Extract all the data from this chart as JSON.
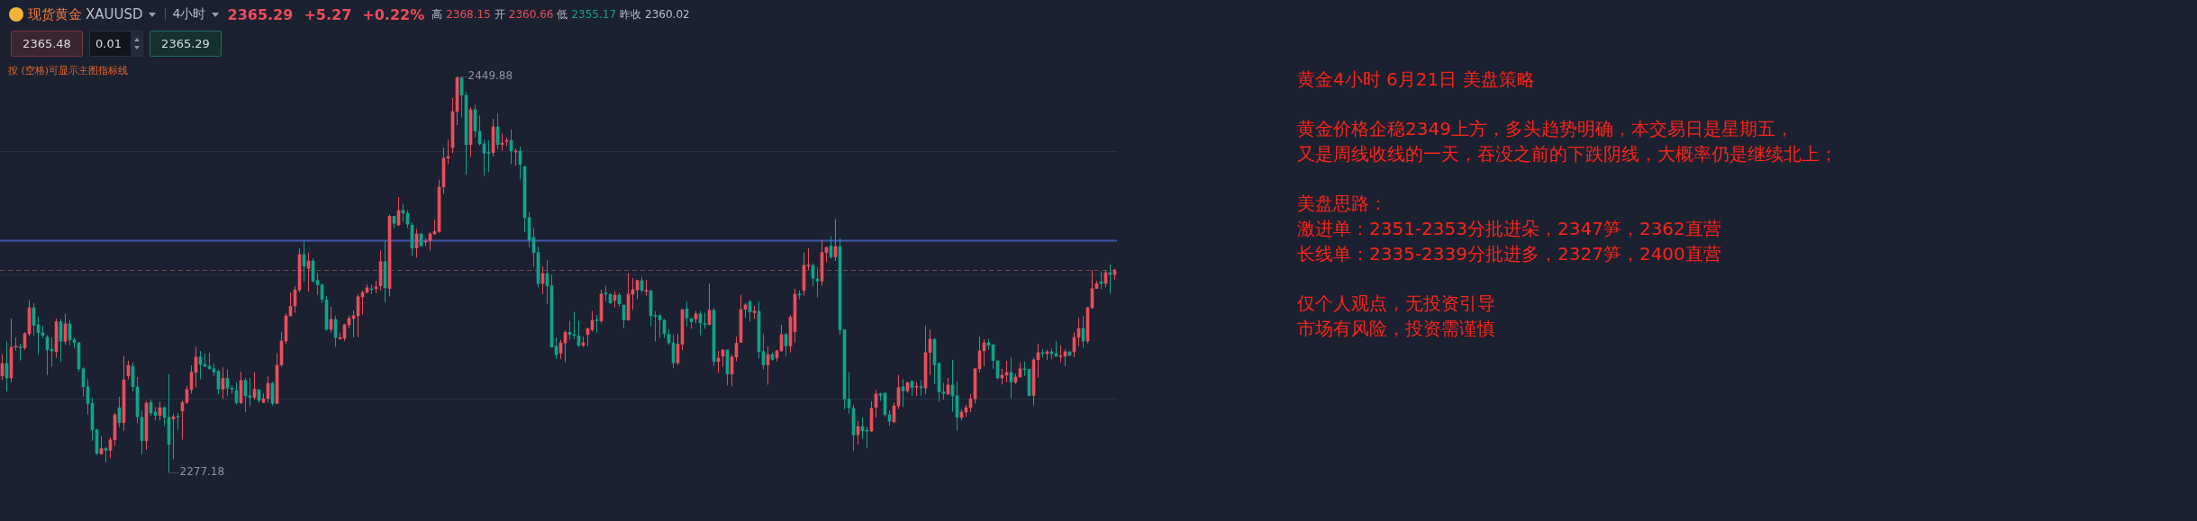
{
  "chart_data": {
    "type": "candlestick",
    "title": "黄金4小时 6月21日 美盘策略",
    "categories": [
      null,
      null,
      null,
      null,
      null,
      null,
      null,
      null,
      null,
      null,
      null,
      null,
      null,
      null,
      null,
      null,
      null,
      null,
      null,
      null,
      null,
      null,
      null,
      null,
      null,
      null,
      null,
      null,
      null,
      null,
      null,
      null,
      null,
      null,
      null,
      null,
      null,
      null,
      null,
      null,
      null,
      null,
      null,
      null,
      null,
      null,
      null,
      null,
      null,
      null,
      null,
      null,
      null,
      null,
      null,
      null,
      null,
      null,
      null,
      null,
      null,
      null,
      null,
      null,
      null,
      null,
      null,
      null,
      null,
      null,
      null,
      null,
      null,
      null,
      null,
      null,
      null,
      null,
      null,
      null,
      null,
      null,
      null,
      null,
      null,
      null,
      null,
      null,
      null,
      null,
      null,
      null,
      null,
      null,
      null,
      null,
      null,
      null,
      null,
      null,
      null,
      null,
      null,
      null,
      null,
      null,
      null,
      null,
      null,
      null,
      null,
      null,
      null,
      null,
      null,
      null,
      null,
      null,
      null,
      null,
      null,
      null,
      null,
      null,
      null,
      null,
      null,
      null,
      null,
      null,
      null,
      null,
      null,
      null,
      null,
      null,
      null,
      null,
      null,
      null,
      null,
      null,
      null,
      null,
      null,
      null,
      null,
      null,
      null,
      null,
      null,
      null,
      null,
      null,
      null,
      null,
      null,
      null,
      null,
      null,
      null,
      null,
      null,
      null,
      null,
      null,
      null,
      null,
      null,
      null,
      null,
      null,
      null,
      null,
      null,
      null,
      null,
      null,
      null,
      null,
      null,
      null,
      null,
      null,
      null,
      null,
      null,
      null,
      null,
      null,
      null,
      null,
      null,
      null,
      null,
      null,
      null,
      null,
      null,
      null,
      null,
      null,
      null,
      null,
      null,
      null,
      null,
      null,
      null,
      null,
      null,
      null,
      null,
      null,
      null,
      null,
      null,
      null,
      null,
      null,
      null,
      null,
      null,
      null,
      null,
      null,
      null,
      null,
      null,
      null,
      null,
      null,
      null,
      null,
      null,
      null,
      null,
      null,
      null,
      null,
      null,
      null,
      null,
      null,
      null,
      null,
      null,
      null
    ],
    "ohlc": [
      [
        2319.3,
        2328.6,
        2317.4,
        2324.7
      ],
      [
        2324.7,
        2334.4,
        2312.5,
        2318.4
      ],
      [
        2318.4,
        2344.3,
        2316.5,
        2331.8
      ],
      [
        2331.8,
        2336.1,
        2330.2,
        2332.2
      ],
      [
        2331.9,
        2333.3,
        2326.0,
        2331.5
      ],
      [
        2331.5,
        2338.3,
        2330.6,
        2337.8
      ],
      [
        2337.7,
        2352.2,
        2336.6,
        2349.0
      ],
      [
        2349.0,
        2351.1,
        2336.6,
        2341.3
      ],
      [
        2341.6,
        2345.1,
        2328.5,
        2338.1
      ],
      [
        2338.1,
        2341.1,
        2335.8,
        2337.0
      ],
      [
        2336.2,
        2337.0,
        2319.7,
        2330.7
      ],
      [
        2330.9,
        2336.1,
        2323.3,
        2330.2
      ],
      [
        2329.8,
        2344.3,
        2327.2,
        2342.9
      ],
      [
        2342.9,
        2344.1,
        2325.4,
        2334.4
      ],
      [
        2334.3,
        2346.3,
        2332.8,
        2342.0
      ],
      [
        2342.0,
        2343.7,
        2332.8,
        2335.0
      ],
      [
        2335.0,
        2336.1,
        2331.5,
        2333.9
      ],
      [
        2333.7,
        2334.1,
        2321.3,
        2322.4
      ],
      [
        2322.4,
        2323.0,
        2310.2,
        2314.5
      ],
      [
        2314.5,
        2317.8,
        2302.5,
        2307.2
      ],
      [
        2307.2,
        2309.8,
        2291.0,
        2295.8
      ],
      [
        2295.8,
        2296.2,
        2284.7,
        2285.5
      ],
      [
        2285.2,
        2292.9,
        2285.2,
        2287.6
      ],
      [
        2287.6,
        2288.4,
        2281.4,
        2286.8
      ],
      [
        2286.8,
        2292.5,
        2283.4,
        2291.4
      ],
      [
        2291.4,
        2303.1,
        2288.7,
        2302.3
      ],
      [
        2305.4,
        2310.2,
        2296.9,
        2298.9
      ],
      [
        2298.9,
        2327.9,
        2295.4,
        2317.5
      ],
      [
        2319.3,
        2325.9,
        2317.8,
        2323.9
      ],
      [
        2323.5,
        2325.2,
        2312.5,
        2314.6
      ],
      [
        2314.5,
        2318.8,
        2298.6,
        2301.4
      ],
      [
        2301.2,
        2304.0,
        2285.1,
        2291.0
      ],
      [
        2291.0,
        2308.4,
        2287.0,
        2307.4
      ],
      [
        2307.7,
        2309.0,
        2301.8,
        2303.1
      ],
      [
        2303.5,
        2305.6,
        2299.9,
        2302.1
      ],
      [
        2302.1,
        2308.0,
        2299.9,
        2305.4
      ],
      [
        2305.4,
        2306.0,
        2297.4,
        2301.2
      ],
      [
        2301.2,
        2320.0,
        2277.18,
        2289.4
      ],
      [
        2300.5,
        2302.7,
        2282.9,
        2301.4
      ],
      [
        2301.6,
        2303.1,
        2295.8,
        2301.3
      ],
      [
        2304.0,
        2308.6,
        2291.5,
        2307.7
      ],
      [
        2307.7,
        2314.9,
        2307.0,
        2313.3
      ],
      [
        2313.3,
        2323.9,
        2311.5,
        2320.8
      ],
      [
        2320.8,
        2331.8,
        2314.2,
        2327.5
      ],
      [
        2327.5,
        2330.2,
        2317.8,
        2324.3
      ],
      [
        2324.3,
        2328.9,
        2323.1,
        2323.5
      ],
      [
        2323.5,
        2329.4,
        2322.0,
        2322.4
      ],
      [
        2322.4,
        2324.7,
        2319.2,
        2321.0
      ],
      [
        2321.3,
        2322.0,
        2311.4,
        2313.6
      ],
      [
        2313.6,
        2323.0,
        2309.3,
        2318.2
      ],
      [
        2318.2,
        2322.1,
        2310.6,
        2313.9
      ],
      [
        2313.9,
        2315.2,
        2311.5,
        2313.5
      ],
      [
        2312.9,
        2316.5,
        2306.7,
        2307.6
      ],
      [
        2307.6,
        2321.0,
        2307.0,
        2317.3
      ],
      [
        2317.3,
        2318.4,
        2303.4,
        2310.6
      ],
      [
        2310.6,
        2318.4,
        2306.4,
        2309.9
      ],
      [
        2309.9,
        2320.8,
        2308.9,
        2313.5
      ],
      [
        2313.3,
        2313.3,
        2307.6,
        2308.6
      ],
      [
        2307.7,
        2311.6,
        2307.4,
        2309.3
      ],
      [
        2309.5,
        2319.1,
        2307.7,
        2316.1
      ],
      [
        2316.1,
        2316.7,
        2306.4,
        2307.3
      ],
      [
        2307.3,
        2329.2,
        2307.0,
        2323.9
      ],
      [
        2324.1,
        2338.4,
        2323.3,
        2334.5
      ],
      [
        2334.5,
        2346.6,
        2333.3,
        2345.5
      ],
      [
        2345.5,
        2355.7,
        2345.1,
        2349.6
      ],
      [
        2349.8,
        2358.5,
        2346.8,
        2356.8
      ],
      [
        2356.8,
        2374.9,
        2355.7,
        2372.2
      ],
      [
        2372.2,
        2378.2,
        2360.2,
        2367.2
      ],
      [
        2366.2,
        2373.1,
        2356.1,
        2369.4
      ],
      [
        2369.4,
        2370.6,
        2359.9,
        2360.6
      ],
      [
        2360.9,
        2364.2,
        2354.7,
        2359.0
      ],
      [
        2359.0,
        2359.6,
        2351.1,
        2352.7
      ],
      [
        2352.4,
        2354.1,
        2339.0,
        2339.6
      ],
      [
        2339.6,
        2349.4,
        2338.1,
        2343.9
      ],
      [
        2343.9,
        2345.5,
        2331.9,
        2336.0
      ],
      [
        2335.4,
        2338.1,
        2335.2,
        2336.0
      ],
      [
        2335.7,
        2342.0,
        2334.5,
        2341.6
      ],
      [
        2341.6,
        2345.6,
        2340.0,
        2344.3
      ],
      [
        2344.3,
        2347.9,
        2336.1,
        2345.5
      ],
      [
        2345.5,
        2355.0,
        2336.2,
        2353.8
      ],
      [
        2353.8,
        2356.6,
        2346.2,
        2355.7
      ],
      [
        2355.7,
        2359.2,
        2355.3,
        2357.7
      ],
      [
        2357.3,
        2359.0,
        2355.0,
        2356.9
      ],
      [
        2357.4,
        2360.7,
        2355.5,
        2358.1
      ],
      [
        2358.6,
        2374.0,
        2356.6,
        2369.1
      ],
      [
        2369.1,
        2378.3,
        2351.5,
        2357.7
      ],
      [
        2357.4,
        2389.7,
        2354.0,
        2388.9
      ],
      [
        2388.9,
        2389.1,
        2383.6,
        2385.8
      ],
      [
        2385.1,
        2397.3,
        2384.7,
        2391.4
      ],
      [
        2391.4,
        2394.3,
        2386.5,
        2390.4
      ],
      [
        2390.2,
        2391.5,
        2383.8,
        2385.4
      ],
      [
        2385.0,
        2386.3,
        2371.7,
        2375.1
      ],
      [
        2375.1,
        2383.4,
        2370.8,
        2381.2
      ],
      [
        2381.2,
        2381.6,
        2375.7,
        2376.0
      ],
      [
        2377.6,
        2379.3,
        2376.0,
        2378.1
      ],
      [
        2378.3,
        2382.0,
        2373.9,
        2381.2
      ],
      [
        2381.2,
        2387.5,
        2380.8,
        2382.3
      ],
      [
        2382.3,
        2404.8,
        2381.7,
        2401.6
      ],
      [
        2401.7,
        2418.9,
        2398.6,
        2414.2
      ],
      [
        2414.3,
        2422.4,
        2411.6,
        2415.0
      ],
      [
        2418.9,
        2440.5,
        2416.5,
        2434.6
      ],
      [
        2434.6,
        2449.88,
        2428.7,
        2449.3
      ],
      [
        2449.2,
        2449.6,
        2432.0,
        2441.8
      ],
      [
        2441.6,
        2443.0,
        2407.1,
        2420.2
      ],
      [
        2420.2,
        2436.4,
        2414.8,
        2435.4
      ],
      [
        2435.4,
        2437.5,
        2423.3,
        2426.1
      ],
      [
        2426.0,
        2432.9,
        2419.7,
        2420.5
      ],
      [
        2420.5,
        2422.4,
        2406.5,
        2416.5
      ],
      [
        2416.7,
        2422.0,
        2408.3,
        2416.3
      ],
      [
        2416.7,
        2431.4,
        2415.1,
        2427.9
      ],
      [
        2427.9,
        2433.8,
        2418.1,
        2420.2
      ],
      [
        2420.2,
        2425.0,
        2417.4,
        2420.8
      ],
      [
        2421.6,
        2423.3,
        2419.5,
        2422.0
      ],
      [
        2422.0,
        2426.7,
        2411.6,
        2417.4
      ],
      [
        2416.9,
        2418.6,
        2410.9,
        2417.3
      ],
      [
        2417.4,
        2419.3,
        2405.0,
        2411.6
      ],
      [
        2410.6,
        2411.0,
        2382.1,
        2388.3
      ],
      [
        2388.3,
        2390.6,
        2375.3,
        2378.6
      ],
      [
        2379.6,
        2383.6,
        2366.8,
        2373.1
      ],
      [
        2373.1,
        2375.7,
        2358.0,
        2359.6
      ],
      [
        2359.6,
        2367.1,
        2355.0,
        2363.9
      ],
      [
        2363.9,
        2369.8,
        2350.7,
        2358.6
      ],
      [
        2358.6,
        2363.5,
        2331.8,
        2331.9
      ],
      [
        2332.2,
        2336.1,
        2326.7,
        2328.5
      ],
      [
        2329.2,
        2335.0,
        2326.7,
        2333.7
      ],
      [
        2333.7,
        2339.2,
        2325.2,
        2338.3
      ],
      [
        2338.3,
        2343.3,
        2335.0,
        2337.4
      ],
      [
        2337.3,
        2347.2,
        2335.4,
        2337.0
      ],
      [
        2336.7,
        2343.3,
        2331.9,
        2332.6
      ],
      [
        2332.6,
        2336.5,
        2331.9,
        2333.7
      ],
      [
        2337.4,
        2340.4,
        2332.2,
        2339.8
      ],
      [
        2339.4,
        2347.6,
        2338.6,
        2343.5
      ],
      [
        2343.5,
        2345.9,
        2338.1,
        2343.3
      ],
      [
        2343.3,
        2356.9,
        2342.5,
        2355.0
      ],
      [
        2355.3,
        2358.6,
        2351.8,
        2355.0
      ],
      [
        2354.9,
        2355.0,
        2350.7,
        2351.1
      ],
      [
        2352.2,
        2356.2,
        2349.2,
        2354.5
      ],
      [
        2354.5,
        2355.6,
        2349.4,
        2350.7
      ],
      [
        2350.2,
        2350.2,
        2340.0,
        2343.7
      ],
      [
        2343.7,
        2364.1,
        2343.3,
        2354.9
      ],
      [
        2354.9,
        2362.0,
        2348.1,
        2356.9
      ],
      [
        2356.8,
        2361.2,
        2352.7,
        2360.9
      ],
      [
        2360.8,
        2362.5,
        2355.5,
        2356.6
      ],
      [
        2356.2,
        2361.2,
        2354.3,
        2356.5
      ],
      [
        2356.5,
        2356.5,
        2340.9,
        2345.6
      ],
      [
        2345.5,
        2347.5,
        2334.4,
        2345.2
      ],
      [
        2345.5,
        2346.3,
        2335.8,
        2343.7
      ],
      [
        2343.5,
        2344.1,
        2335.8,
        2337.8
      ],
      [
        2337.4,
        2339.6,
        2332.8,
        2333.7
      ],
      [
        2333.7,
        2337.4,
        2322.6,
        2325.0
      ],
      [
        2325.0,
        2337.7,
        2324.1,
        2333.1
      ],
      [
        2333.1,
        2348.2,
        2330.5,
        2348.2
      ],
      [
        2348.5,
        2351.8,
        2340.9,
        2344.6
      ],
      [
        2344.3,
        2344.3,
        2339.8,
        2342.9
      ],
      [
        2344.1,
        2347.6,
        2342.2,
        2346.3
      ],
      [
        2346.3,
        2347.6,
        2337.0,
        2342.4
      ],
      [
        2342.0,
        2346.8,
        2339.8,
        2341.7
      ],
      [
        2341.7,
        2359.6,
        2341.3,
        2347.9
      ],
      [
        2347.9,
        2348.8,
        2323.6,
        2325.6
      ],
      [
        2325.6,
        2330.2,
        2320.6,
        2327.0
      ],
      [
        2327.9,
        2330.8,
        2323.3,
        2330.6
      ],
      [
        2330.6,
        2330.6,
        2315.1,
        2320.1
      ],
      [
        2320.1,
        2328.6,
        2314.7,
        2327.5
      ],
      [
        2327.5,
        2336.5,
        2325.6,
        2333.5
      ],
      [
        2333.9,
        2354.7,
        2333.7,
        2348.2
      ],
      [
        2348.4,
        2351.1,
        2344.6,
        2350.2
      ],
      [
        2351.6,
        2352.4,
        2342.9,
        2347.2
      ],
      [
        2346.9,
        2349.8,
        2344.1,
        2347.5
      ],
      [
        2347.5,
        2351.8,
        2326.9,
        2329.9
      ],
      [
        2329.9,
        2337.7,
        2322.1,
        2324.1
      ],
      [
        2324.1,
        2332.2,
        2315.4,
        2328.6
      ],
      [
        2328.6,
        2329.4,
        2326.0,
        2326.5
      ],
      [
        2327.2,
        2330.6,
        2325.6,
        2330.2
      ],
      [
        2330.2,
        2341.6,
        2329.8,
        2337.3
      ],
      [
        2337.3,
        2338.1,
        2327.9,
        2332.4
      ],
      [
        2332.4,
        2345.9,
        2329.5,
        2344.9
      ],
      [
        2338.6,
        2357.3,
        2333.9,
        2354.9
      ],
      [
        2355.0,
        2356.6,
        2352.7,
        2354.6
      ],
      [
        2356.6,
        2373.1,
        2354.3,
        2367.5
      ],
      [
        2367.2,
        2374.9,
        2365.3,
        2367.5
      ],
      [
        2367.5,
        2368.4,
        2358.6,
        2361.9
      ],
      [
        2361.6,
        2366.7,
        2353.5,
        2360.6
      ],
      [
        2360.6,
        2378.5,
        2358.6,
        2373.1
      ],
      [
        2373.1,
        2375.6,
        2368.8,
        2375.3
      ],
      [
        2376.0,
        2380.2,
        2370.4,
        2371.2
      ],
      [
        2371.2,
        2387.6,
        2369.4,
        2375.7
      ],
      [
        2375.7,
        2379.3,
        2337.3,
        2339.4
      ],
      [
        2339.4,
        2339.4,
        2304.7,
        2309.2
      ],
      [
        2309.2,
        2320.9,
        2302.9,
        2305.4
      ],
      [
        2305.1,
        2306.7,
        2286.4,
        2293.6
      ],
      [
        2293.6,
        2299.7,
        2289.3,
        2297.2
      ],
      [
        2297.2,
        2301.2,
        2291.9,
        2295.4
      ],
      [
        2295.4,
        2297.2,
        2287.7,
        2295.2
      ],
      [
        2295.2,
        2308.2,
        2294.9,
        2305.1
      ],
      [
        2305.6,
        2313.2,
        2301.0,
        2311.4
      ],
      [
        2311.4,
        2311.9,
        2308.4,
        2310.8
      ],
      [
        2311.8,
        2311.8,
        2301.4,
        2302.5
      ],
      [
        2302.3,
        2304.3,
        2297.5,
        2299.5
      ],
      [
        2299.2,
        2307.6,
        2298.6,
        2306.2
      ],
      [
        2306.2,
        2319.7,
        2304.8,
        2314.2
      ],
      [
        2314.5,
        2317.8,
        2305.7,
        2312.8
      ],
      [
        2312.8,
        2316.7,
        2311.9,
        2316.3
      ],
      [
        2316.8,
        2317.4,
        2310.6,
        2314.2
      ],
      [
        2314.4,
        2316.6,
        2310.6,
        2314.6
      ],
      [
        2314.6,
        2317.4,
        2310.7,
        2314.1
      ],
      [
        2314.0,
        2341.3,
        2311.5,
        2329.4
      ],
      [
        2329.5,
        2339.4,
        2319.7,
        2335.3
      ],
      [
        2335.3,
        2335.4,
        2315.8,
        2324.1
      ],
      [
        2324.7,
        2325.2,
        2308.0,
        2312.3
      ],
      [
        2312.3,
        2316.2,
        2308.9,
        2311.6
      ],
      [
        2311.4,
        2318.4,
        2310.9,
        2315.3
      ],
      [
        2315.3,
        2326.3,
        2303.7,
        2310.6
      ],
      [
        2310.6,
        2316.8,
        2295.5,
        2301.2
      ],
      [
        2301.2,
        2304.7,
        2299.9,
        2303.5
      ],
      [
        2303.5,
        2306.7,
        2301.4,
        2305.4
      ],
      [
        2305.4,
        2311.5,
        2303.5,
        2309.3
      ],
      [
        2309.3,
        2322.4,
        2307.3,
        2322.4
      ],
      [
        2322.4,
        2336.5,
        2320.8,
        2330.2
      ],
      [
        2330.2,
        2335.3,
        2323.6,
        2333.7
      ],
      [
        2333.7,
        2335.4,
        2330.6,
        2332.6
      ],
      [
        2332.9,
        2332.9,
        2322.4,
        2326.0
      ],
      [
        2325.9,
        2325.9,
        2317.8,
        2318.4
      ],
      [
        2318.4,
        2322.4,
        2315.5,
        2319.6
      ],
      [
        2319.6,
        2325.9,
        2316.5,
        2320.8
      ],
      [
        2320.8,
        2327.6,
        2309.5,
        2316.6
      ],
      [
        2316.5,
        2320.2,
        2315.8,
        2318.8
      ],
      [
        2318.8,
        2325.0,
        2318.7,
        2322.4
      ],
      [
        2322.4,
        2325.6,
        2319.3,
        2322.0
      ],
      [
        2322.1,
        2322.4,
        2310.6,
        2310.6
      ],
      [
        2310.8,
        2327.3,
        2306.4,
        2326.3
      ],
      [
        2326.3,
        2333.1,
        2318.4,
        2329.4
      ],
      [
        2329.4,
        2330.8,
        2327.2,
        2329.0
      ],
      [
        2329.0,
        2330.6,
        2326.3,
        2329.8
      ],
      [
        2329.8,
        2331.2,
        2326.7,
        2329.0
      ],
      [
        2329.0,
        2334.5,
        2327.6,
        2327.9
      ],
      [
        2327.6,
        2332.6,
        2325.2,
        2327.9
      ],
      [
        2327.9,
        2330.8,
        2323.6,
        2329.8
      ],
      [
        2329.8,
        2329.8,
        2327.9,
        2328.2
      ],
      [
        2329.8,
        2338.3,
        2327.5,
        2336.1
      ],
      [
        2336.1,
        2344.6,
        2332.2,
        2340.0
      ],
      [
        2340.0,
        2345.5,
        2331.5,
        2334.5
      ],
      [
        2334.5,
        2349.4,
        2333.5,
        2349.0
      ],
      [
        2349.0,
        2365.5,
        2348.5,
        2357.3
      ],
      [
        2357.4,
        2360.7,
        2357.4,
        2359.5
      ],
      [
        2360.3,
        2364.9,
        2357.0,
        2359.6
      ],
      [
        2359.6,
        2365.5,
        2357.9,
        2364.3
      ],
      [
        2364.3,
        2367.9,
        2355.0,
        2363.6
      ],
      [
        2363.5,
        2366.1,
        2361.3,
        2365.29
      ]
    ],
    "colors": [
      "#eb4d5c",
      "#0fa38a",
      "#eb4d5c",
      "#eb4d5c",
      "#0fa38a",
      "#eb4d5c",
      "#eb4d5c",
      "#0fa38a",
      "#0fa38a",
      "#0fa38a",
      "#0fa38a",
      "#0fa38a",
      "#eb4d5c",
      "#0fa38a",
      "#eb4d5c",
      "#0fa38a",
      "#0fa38a",
      "#0fa38a",
      "#0fa38a",
      "#0fa38a",
      "#0fa38a",
      "#0fa38a",
      "#eb4d5c",
      "#0fa38a",
      "#eb4d5c",
      "#eb4d5c",
      "#0fa38a",
      "#eb4d5c",
      "#eb4d5c",
      "#0fa38a",
      "#0fa38a",
      "#0fa38a",
      "#eb4d5c",
      "#0fa38a",
      "#0fa38a",
      "#eb4d5c",
      "#0fa38a",
      "#0fa38a",
      "#eb4d5c",
      "#0fa38a",
      "#eb4d5c",
      "#eb4d5c",
      "#eb4d5c",
      "#eb4d5c",
      "#0fa38a",
      "#0fa38a",
      "#0fa38a",
      "#0fa38a",
      "#0fa38a",
      "#eb4d5c",
      "#0fa38a",
      "#0fa38a",
      "#0fa38a",
      "#eb4d5c",
      "#0fa38a",
      "#0fa38a",
      "#eb4d5c",
      "#0fa38a",
      "#eb4d5c",
      "#eb4d5c",
      "#0fa38a",
      "#eb4d5c",
      "#eb4d5c",
      "#eb4d5c",
      "#eb4d5c",
      "#eb4d5c",
      "#eb4d5c",
      "#0fa38a",
      "#eb4d5c",
      "#0fa38a",
      "#0fa38a",
      "#0fa38a",
      "#0fa38a",
      "#eb4d5c",
      "#0fa38a",
      "#eb4d5c",
      "#eb4d5c",
      "#eb4d5c",
      "#eb4d5c",
      "#eb4d5c",
      "#eb4d5c",
      "#eb4d5c",
      "#0fa38a",
      "#eb4d5c",
      "#eb4d5c",
      "#0fa38a",
      "#eb4d5c",
      "#0fa38a",
      "#eb4d5c",
      "#0fa38a",
      "#0fa38a",
      "#0fa38a",
      "#eb4d5c",
      "#0fa38a",
      "#eb4d5c",
      "#eb4d5c",
      "#eb4d5c",
      "#eb4d5c",
      "#eb4d5c",
      "#eb4d5c",
      "#eb4d5c",
      "#eb4d5c",
      "#0fa38a",
      "#0fa38a",
      "#eb4d5c",
      "#0fa38a",
      "#0fa38a",
      "#0fa38a",
      "#0fa38a",
      "#eb4d5c",
      "#0fa38a",
      "#eb4d5c",
      "#eb4d5c",
      "#0fa38a",
      "#eb4d5c",
      "#0fa38a",
      "#0fa38a",
      "#0fa38a",
      "#0fa38a",
      "#0fa38a",
      "#eb4d5c",
      "#0fa38a",
      "#0fa38a",
      "#0fa38a",
      "#eb4d5c",
      "#eb4d5c",
      "#0fa38a",
      "#0fa38a",
      "#0fa38a",
      "#eb4d5c",
      "#eb4d5c",
      "#eb4d5c",
      "#0fa38a",
      "#eb4d5c",
      "#0fa38a",
      "#0fa38a",
      "#eb4d5c",
      "#0fa38a",
      "#0fa38a",
      "#eb4d5c",
      "#eb4d5c",
      "#eb4d5c",
      "#0fa38a",
      "#eb4d5c",
      "#0fa38a",
      "#0fa38a",
      "#0fa38a",
      "#0fa38a",
      "#0fa38a",
      "#0fa38a",
      "#eb4d5c",
      "#eb4d5c",
      "#0fa38a",
      "#0fa38a",
      "#eb4d5c",
      "#0fa38a",
      "#0fa38a",
      "#eb4d5c",
      "#0fa38a",
      "#eb4d5c",
      "#eb4d5c",
      "#0fa38a",
      "#eb4d5c",
      "#eb4d5c",
      "#eb4d5c",
      "#eb4d5c",
      "#0fa38a",
      "#eb4d5c",
      "#0fa38a",
      "#0fa38a",
      "#eb4d5c",
      "#0fa38a",
      "#eb4d5c",
      "#eb4d5c",
      "#0fa38a",
      "#eb4d5c",
      "#eb4d5c",
      "#0fa38a",
      "#eb4d5c",
      "#eb4d5c",
      "#0fa38a",
      "#0fa38a",
      "#eb4d5c",
      "#eb4d5c",
      "#0fa38a",
      "#eb4d5c",
      "#0fa38a",
      "#0fa38a",
      "#0fa38a",
      "#0fa38a",
      "#eb4d5c",
      "#0fa38a",
      "#0fa38a",
      "#eb4d5c",
      "#eb4d5c",
      "#0fa38a",
      "#0fa38a",
      "#0fa38a",
      "#eb4d5c",
      "#eb4d5c",
      "#0fa38a",
      "#eb4d5c",
      "#0fa38a",
      "#eb4d5c",
      "#0fa38a",
      "#eb4d5c",
      "#eb4d5c",
      "#0fa38a",
      "#0fa38a",
      "#0fa38a",
      "#eb4d5c",
      "#0fa38a",
      "#0fa38a",
      "#eb4d5c",
      "#eb4d5c",
      "#eb4d5c",
      "#eb4d5c",
      "#eb4d5c",
      "#eb4d5c",
      "#0fa38a",
      "#0fa38a",
      "#0fa38a",
      "#eb4d5c",
      "#eb4d5c",
      "#0fa38a",
      "#eb4d5c",
      "#eb4d5c",
      "#0fa38a",
      "#0fa38a",
      "#eb4d5c",
      "#eb4d5c",
      "#0fa38a",
      "#eb4d5c",
      "#0fa38a",
      "#0fa38a",
      "#eb4d5c",
      "#eb4d5c",
      "#0fa38a",
      "#eb4d5c",
      "#eb4d5c",
      "#0fa38a",
      "#eb4d5c",
      "#eb4d5c",
      "#eb4d5c",
      "#0fa38a",
      "#eb4d5c",
      "#0fa38a",
      "#eb4d5c"
    ],
    "yticks": [
      {
        "value": 2309.3,
        "label": null
      },
      {
        "value": 2363.5,
        "label": null
      },
      {
        "value": 2417.2,
        "label": null
      }
    ],
    "grid": "y",
    "tick_labels": false,
    "legend": false,
    "ref_lines": [
      {
        "axis": "y",
        "value": 2378.2,
        "color": "#3e58ad",
        "line_style": "solid"
      },
      {
        "axis": "y",
        "value": 2365.29,
        "color": "#7c4652",
        "line_style": "dashed"
      }
    ],
    "annotations": [
      "现货黄金",
      "XAUUSD",
      "4小时",
      "2365.29",
      "+5.27",
      "+0.22%",
      "高",
      "2368.15",
      "开",
      "2360.66",
      "低",
      "2355.17",
      "昨收",
      "2360.02",
      "2365.48",
      "0.01",
      "2365.29",
      "按 (空格)可显示主图指标线",
      "黄金价格企稳2349上方，多头趋势明确，本交易日是星期五，",
      "又是周线收线的一天，吞没之前的下跌阴线，大概率仍是继续北上；",
      "美盘思路：",
      "激进单：2351-2353分批进朵，2347笋，2362直营",
      "长线单：2335-2339分批进多，2327笋，2400直营",
      "仅个人观点，无投资引导",
      "市场有风险，投资需谨慎",
      "2449.88",
      "2277.18"
    ]
  }
}
